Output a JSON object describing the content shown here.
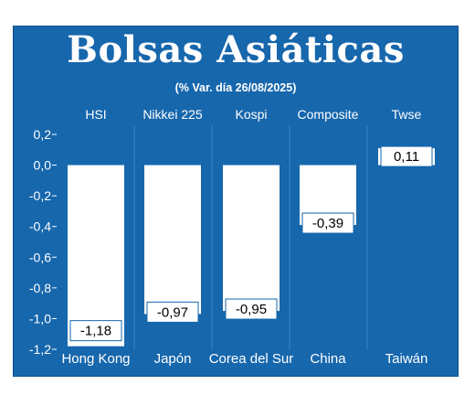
{
  "title": "Bolsas Asiáticas",
  "subtitle": "(% Var. día  26/08/2025)",
  "colors": {
    "background": "#1767ad",
    "bar": "#ffffff",
    "text": "#ffffff",
    "gridline": "#3f86c6",
    "label_box_text": "#000000"
  },
  "chart_data": {
    "type": "bar",
    "title": "Bolsas Asiáticas",
    "subtitle": "(% Var. día  26/08/2025)",
    "index_names": [
      "HSI",
      "Nikkei 225",
      "Kospi",
      "Composite",
      "Twse"
    ],
    "categories": [
      "Hong Kong",
      "Japón",
      "Corea del Sur",
      "China",
      "Taiwán"
    ],
    "values": [
      -1.18,
      -0.97,
      -0.95,
      -0.39,
      0.11
    ],
    "value_labels": [
      "-1,18",
      "-0,97",
      "-0,95",
      "-0,39",
      "0,11"
    ],
    "ylim": [
      -1.2,
      0.2
    ],
    "yticks": [
      0.2,
      0.0,
      -0.2,
      -0.4,
      -0.6,
      -0.8,
      -1.0,
      -1.2
    ],
    "ytick_labels": [
      "0,2",
      "0,0",
      "-0,2",
      "-0,4",
      "-0,6",
      "-0,8",
      "-1,0",
      "-1,2"
    ],
    "grid": "vertical",
    "xlabel": "",
    "ylabel": ""
  }
}
